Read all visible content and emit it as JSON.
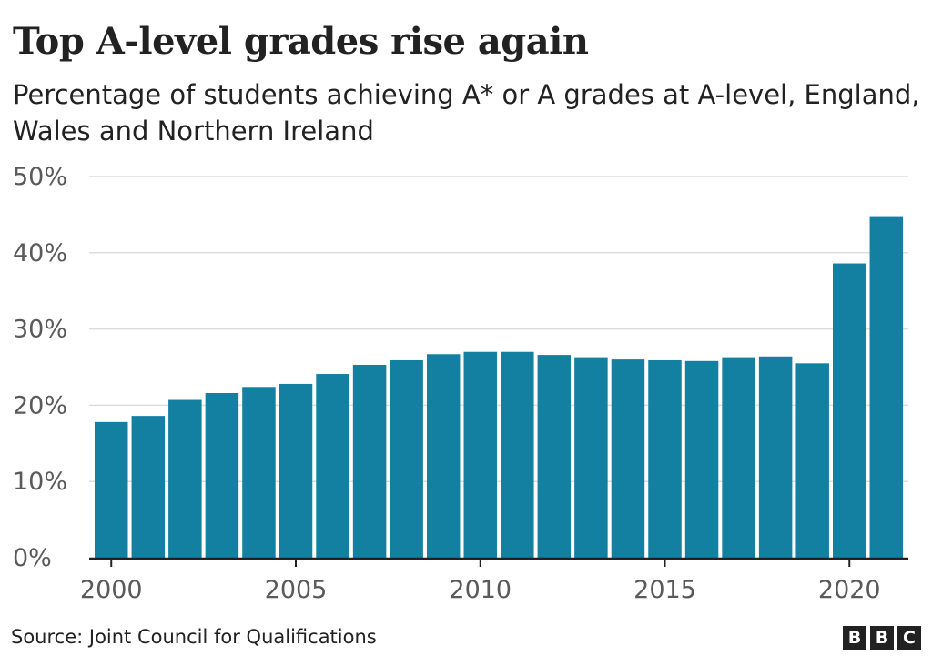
{
  "title": "Top A-level grades rise again",
  "subtitle": "Percentage of students achieving A* or A grades at A-level, England, Wales and Northern Ireland",
  "source": "Source: Joint Council for Qualifications",
  "logo": [
    "B",
    "B",
    "C"
  ],
  "colors": {
    "bar": "#1380a1",
    "grid": "#dddddd",
    "axis": "#222222"
  },
  "chart_data": {
    "type": "bar",
    "x": [
      2000,
      2001,
      2002,
      2003,
      2004,
      2005,
      2006,
      2007,
      2008,
      2009,
      2010,
      2011,
      2012,
      2013,
      2014,
      2015,
      2016,
      2017,
      2018,
      2019,
      2020,
      2021
    ],
    "values": [
      17.8,
      18.6,
      20.7,
      21.6,
      22.4,
      22.8,
      24.1,
      25.3,
      25.9,
      26.7,
      27.0,
      27.0,
      26.6,
      26.3,
      26.0,
      25.9,
      25.8,
      26.3,
      26.4,
      25.5,
      38.6,
      44.8
    ],
    "ylim": [
      0,
      50
    ],
    "yticks": [
      "0%",
      "10%",
      "20%",
      "30%",
      "40%",
      "50%"
    ],
    "xticks": [
      "2000",
      "2005",
      "2010",
      "2015",
      "2020"
    ],
    "grid": true
  }
}
